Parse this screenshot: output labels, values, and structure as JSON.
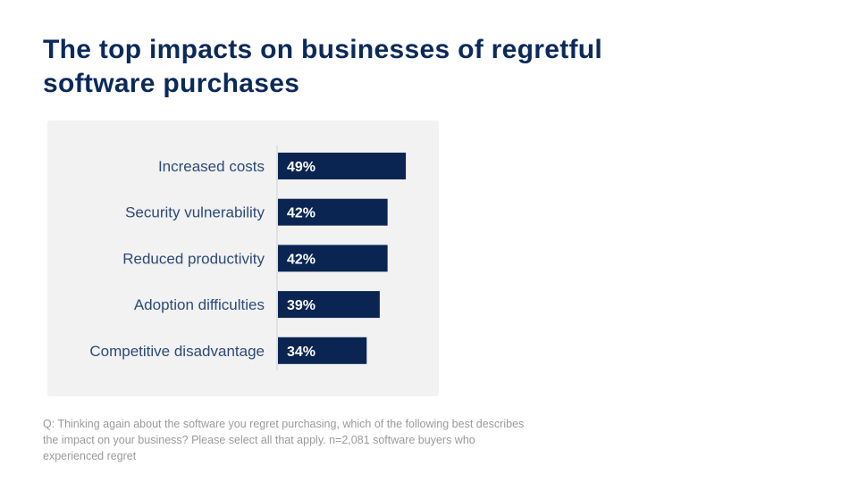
{
  "title": "The top impacts on businesses of regretful software purchases",
  "footnote": "Q: Thinking again about the software you regret purchasing, which of the following best describes the impact on your business? Please select all that apply. n=2,081 software buyers who experienced regret",
  "colors": {
    "bar": "#0a2552",
    "label": "#2c4a78",
    "title": "#0b2a5b",
    "panel": "#f2f2f2"
  },
  "chart_data": {
    "type": "bar",
    "orientation": "horizontal",
    "categories": [
      "Increased costs",
      "Security vulnerability",
      "Reduced productivity",
      "Adoption difficulties",
      "Competitive disadvantage"
    ],
    "values": [
      49,
      42,
      42,
      39,
      34
    ],
    "data_labels": [
      "49%",
      "42%",
      "42%",
      "39%",
      "34%"
    ],
    "unit": "%",
    "grid": false
  }
}
